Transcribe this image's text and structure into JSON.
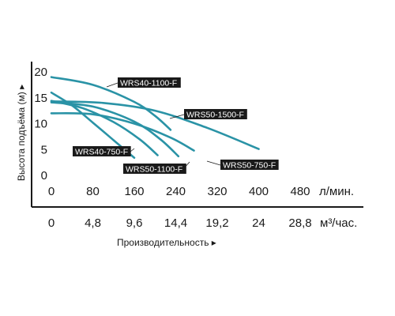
{
  "chart_data": {
    "type": "line",
    "ylabel": "Высота подъёма (м) ▸",
    "xlabel": "Производительность ▸",
    "y_ticks": [
      "0",
      "5",
      "10",
      "15",
      "20"
    ],
    "x_ticks_lpm": [
      "0",
      "80",
      "160",
      "240",
      "320",
      "400",
      "480"
    ],
    "x_unit_lpm": "л/мин.",
    "x_ticks_m3h": [
      "0",
      "4,8",
      "9,6",
      "14,4",
      "19,2",
      "24",
      "28,8"
    ],
    "x_unit_m3h": "м³/час.",
    "xlim": [
      0,
      480
    ],
    "ylim": [
      0,
      20
    ],
    "grid": false,
    "series": [
      {
        "name": "WRS40-1100-F",
        "x": [
          0,
          80,
          160,
          200,
          230
        ],
        "y": [
          19,
          17.5,
          14.2,
          11.5,
          8.8
        ]
      },
      {
        "name": "WRS50-1500-F",
        "x": [
          0,
          100,
          200,
          300,
          400
        ],
        "y": [
          14.3,
          14,
          12.5,
          9.2,
          5.1
        ]
      },
      {
        "name": "WRS40-750-F",
        "x": [
          0,
          40,
          80,
          120,
          160
        ],
        "y": [
          16,
          13.5,
          10.2,
          6.8,
          3.4
        ]
      },
      {
        "name": "WRS50-1100-F",
        "x": [
          0,
          80,
          160,
          210,
          245
        ],
        "y": [
          14.1,
          13.3,
          10.4,
          7,
          3.7
        ]
      },
      {
        "name": "WRS50-750-F",
        "x": [
          0,
          80,
          160,
          230,
          275
        ],
        "y": [
          12,
          11.8,
          10,
          7.3,
          4.8
        ]
      },
      {
        "name": "",
        "x": [
          0,
          60,
          120,
          170,
          205
        ],
        "y": [
          14.4,
          13,
          10.3,
          7,
          3.9
        ]
      }
    ]
  }
}
